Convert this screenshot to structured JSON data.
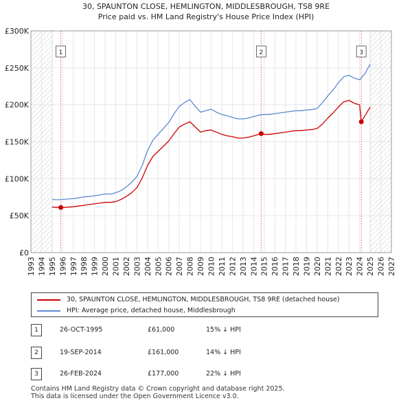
{
  "chart_data": {
    "type": "line",
    "title": "30, SPAUNTON CLOSE, HEMLINGTON, MIDDLESBROUGH, TS8 9RE",
    "subtitle": "Price paid vs. HM Land Registry's House Price Index (HPI)",
    "xlabel": "",
    "ylabel": "",
    "xlim": [
      1993,
      2027
    ],
    "ylim": [
      0,
      300000
    ],
    "x_ticks": [
      "1993",
      "1994",
      "1995",
      "1996",
      "1997",
      "1998",
      "1999",
      "2000",
      "2001",
      "2002",
      "2003",
      "2004",
      "2005",
      "2006",
      "2007",
      "2008",
      "2009",
      "2010",
      "2011",
      "2012",
      "2013",
      "2014",
      "2015",
      "2016",
      "2017",
      "2018",
      "2019",
      "2020",
      "2021",
      "2022",
      "2023",
      "2024",
      "2025",
      "2026",
      "2027"
    ],
    "y_ticks": [
      {
        "value": 0,
        "label": "£0"
      },
      {
        "value": 50000,
        "label": "£50K"
      },
      {
        "value": 100000,
        "label": "£100K"
      },
      {
        "value": 150000,
        "label": "£150K"
      },
      {
        "value": 200000,
        "label": "£200K"
      },
      {
        "value": 250000,
        "label": "£250K"
      },
      {
        "value": 300000,
        "label": "£300K"
      }
    ],
    "hatched_ranges": [
      [
        1993,
        1995.0
      ],
      [
        2025.0,
        2027
      ]
    ],
    "series": [
      {
        "name": "HPI: Average price, detached house, Middlesbrough",
        "color": "#5b8ad1",
        "points": [
          [
            1995.0,
            72000
          ],
          [
            1995.5,
            71500
          ],
          [
            1996.0,
            72000
          ],
          [
            1996.5,
            72500
          ],
          [
            1997.0,
            73000
          ],
          [
            1997.5,
            74000
          ],
          [
            1998.0,
            75500
          ],
          [
            1998.5,
            76000
          ],
          [
            1999.0,
            77000
          ],
          [
            1999.5,
            78000
          ],
          [
            2000.0,
            79500
          ],
          [
            2000.5,
            79000
          ],
          [
            2001.0,
            81000
          ],
          [
            2001.5,
            84000
          ],
          [
            2002.0,
            89000
          ],
          [
            2002.5,
            95000
          ],
          [
            2003.0,
            103000
          ],
          [
            2003.5,
            118000
          ],
          [
            2004.0,
            138000
          ],
          [
            2004.5,
            152000
          ],
          [
            2005.0,
            160000
          ],
          [
            2005.5,
            168000
          ],
          [
            2006.0,
            176000
          ],
          [
            2006.5,
            188000
          ],
          [
            2007.0,
            198000
          ],
          [
            2007.5,
            203000
          ],
          [
            2008.0,
            207000
          ],
          [
            2008.5,
            198000
          ],
          [
            2009.0,
            190000
          ],
          [
            2009.5,
            192000
          ],
          [
            2010.0,
            194000
          ],
          [
            2010.5,
            190000
          ],
          [
            2011.0,
            187000
          ],
          [
            2011.5,
            185000
          ],
          [
            2012.0,
            183000
          ],
          [
            2012.5,
            181000
          ],
          [
            2013.0,
            181000
          ],
          [
            2013.5,
            182000
          ],
          [
            2014.0,
            184000
          ],
          [
            2014.5,
            186000
          ],
          [
            2015.0,
            187000
          ],
          [
            2015.5,
            187000
          ],
          [
            2016.0,
            188000
          ],
          [
            2016.5,
            189000
          ],
          [
            2017.0,
            190000
          ],
          [
            2017.5,
            191000
          ],
          [
            2018.0,
            192000
          ],
          [
            2018.5,
            192000
          ],
          [
            2019.0,
            193000
          ],
          [
            2019.5,
            193500
          ],
          [
            2020.0,
            195000
          ],
          [
            2020.5,
            203000
          ],
          [
            2021.0,
            212000
          ],
          [
            2021.5,
            220000
          ],
          [
            2022.0,
            230000
          ],
          [
            2022.5,
            238000
          ],
          [
            2023.0,
            240000
          ],
          [
            2023.5,
            236000
          ],
          [
            2024.0,
            234000
          ],
          [
            2024.5,
            242000
          ],
          [
            2025.0,
            255000
          ]
        ]
      },
      {
        "name": "30, SPAUNTON CLOSE, HEMLINGTON, MIDDLESBROUGH, TS8 9RE (detached house)",
        "color": "#cc0000",
        "points": [
          [
            1995.0,
            61500
          ],
          [
            1995.8,
            61000
          ],
          [
            1996.5,
            61500
          ],
          [
            1997.0,
            62000
          ],
          [
            1997.5,
            63000
          ],
          [
            1998.0,
            64000
          ],
          [
            1998.5,
            65000
          ],
          [
            1999.0,
            66000
          ],
          [
            1999.5,
            67000
          ],
          [
            2000.0,
            68000
          ],
          [
            2000.5,
            68000
          ],
          [
            2001.0,
            69000
          ],
          [
            2001.5,
            72000
          ],
          [
            2002.0,
            76000
          ],
          [
            2002.5,
            81000
          ],
          [
            2003.0,
            88000
          ],
          [
            2003.5,
            101000
          ],
          [
            2004.0,
            118000
          ],
          [
            2004.5,
            130000
          ],
          [
            2005.0,
            137000
          ],
          [
            2005.5,
            144000
          ],
          [
            2006.0,
            151000
          ],
          [
            2006.5,
            161000
          ],
          [
            2007.0,
            170000
          ],
          [
            2007.5,
            174000
          ],
          [
            2008.0,
            177000
          ],
          [
            2008.5,
            170000
          ],
          [
            2009.0,
            163000
          ],
          [
            2009.5,
            165000
          ],
          [
            2010.0,
            166000
          ],
          [
            2010.5,
            163000
          ],
          [
            2011.0,
            160000
          ],
          [
            2011.5,
            158000
          ],
          [
            2012.0,
            157000
          ],
          [
            2012.5,
            155000
          ],
          [
            2013.0,
            155000
          ],
          [
            2013.5,
            156000
          ],
          [
            2014.0,
            158000
          ],
          [
            2014.72,
            161000
          ],
          [
            2015.0,
            160000
          ],
          [
            2015.5,
            160000
          ],
          [
            2016.0,
            161000
          ],
          [
            2016.5,
            162000
          ],
          [
            2017.0,
            163000
          ],
          [
            2017.5,
            164000
          ],
          [
            2018.0,
            165000
          ],
          [
            2018.5,
            165000
          ],
          [
            2019.0,
            166000
          ],
          [
            2019.5,
            166500
          ],
          [
            2020.0,
            168000
          ],
          [
            2020.5,
            174000
          ],
          [
            2021.0,
            182000
          ],
          [
            2021.5,
            189000
          ],
          [
            2022.0,
            197000
          ],
          [
            2022.5,
            204000
          ],
          [
            2023.0,
            206000
          ],
          [
            2023.5,
            202000
          ],
          [
            2024.0,
            200000
          ],
          [
            2024.16,
            177000
          ],
          [
            2024.5,
            185000
          ],
          [
            2025.0,
            197000
          ]
        ]
      }
    ],
    "markers": [
      {
        "label": "1",
        "x": 1995.82,
        "y": 61000
      },
      {
        "label": "2",
        "x": 2014.72,
        "y": 161000
      },
      {
        "label": "3",
        "x": 2024.16,
        "y": 177000
      }
    ]
  },
  "legend": {
    "property_label": "30, SPAUNTON CLOSE, HEMLINGTON, MIDDLESBROUGH, TS8 9RE (detached house)",
    "hpi_label": "HPI: Average price, detached house, Middlesbrough",
    "property_color": "#cc0000",
    "hpi_color": "#5b8ad1"
  },
  "transactions": [
    {
      "num": "1",
      "date": "26-OCT-1995",
      "price": "£61,000",
      "hpi": "15% ↓ HPI"
    },
    {
      "num": "2",
      "date": "19-SEP-2014",
      "price": "£161,000",
      "hpi": "14% ↓ HPI"
    },
    {
      "num": "3",
      "date": "26-FEB-2024",
      "price": "£177,000",
      "hpi": "22% ↓ HPI"
    }
  ],
  "footer": {
    "line1": "Contains HM Land Registry data © Crown copyright and database right 2025.",
    "line2": "This data is licensed under the Open Government Licence v3.0."
  }
}
